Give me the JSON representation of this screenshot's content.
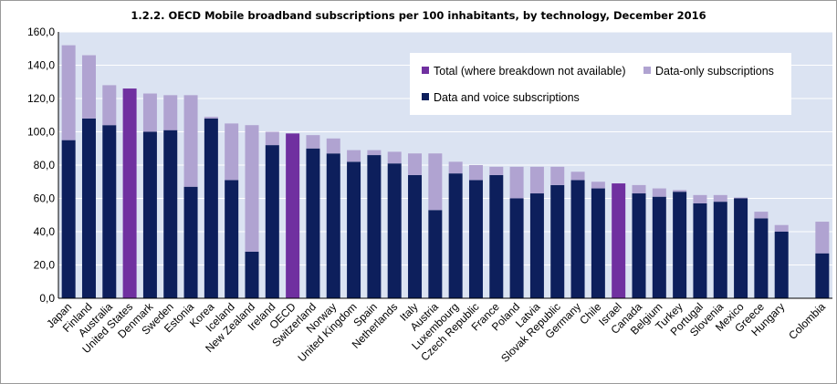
{
  "chart_data": {
    "type": "bar",
    "stacked": true,
    "title": "1.2.2. OECD Mobile broadband subscriptions per 100 inhabitants, by technology, December 2016",
    "xlabel": "",
    "ylabel": "",
    "ylim": [
      0,
      160
    ],
    "yticks": [
      "0,0",
      "20,0",
      "40,0",
      "60,0",
      "80,0",
      "100,0",
      "120,0",
      "140,0",
      "160,0"
    ],
    "grid": true,
    "legend_position": "top-right",
    "categories": [
      "Japan",
      "Finland",
      "Australia",
      "United States",
      "Denmark",
      "Sweden",
      "Estonia",
      "Korea",
      "Iceland",
      "New Zealand",
      "Ireland",
      "OECD",
      "Switzerland",
      "Norway",
      "United Kingdom",
      "Spain",
      "Netherlands",
      "Italy",
      "Austria",
      "Luxembourg",
      "Czech Republic",
      "France",
      "Poland",
      "Latvia",
      "Slovak Republic",
      "Germany",
      "Chile",
      "Israel",
      "Canada",
      "Belgium",
      "Turkey",
      "Portugal",
      "Slovenia",
      "Mexico",
      "Greece",
      "Hungary",
      "",
      "Colombia"
    ],
    "series": [
      {
        "name": "Data and voice subscriptions",
        "color": "#0d1f5c",
        "values": [
          95,
          108,
          104,
          null,
          100,
          101,
          67,
          108,
          71,
          28,
          92,
          null,
          90,
          87,
          82,
          86,
          81,
          74,
          53,
          75,
          71,
          74,
          60,
          63,
          68,
          71,
          66,
          null,
          63,
          61,
          64,
          57,
          58,
          60,
          48,
          40,
          null,
          27
        ]
      },
      {
        "name": "Data-only subscriptions",
        "color": "#b0a3d1",
        "values": [
          57,
          38,
          24,
          null,
          23,
          21,
          55,
          1,
          34,
          76,
          8,
          null,
          8,
          9,
          7,
          3,
          7,
          13,
          34,
          7,
          9,
          5,
          19,
          16,
          11,
          5,
          4,
          null,
          5,
          5,
          1,
          5,
          4,
          0.5,
          4,
          4,
          null,
          19
        ]
      },
      {
        "name": "Total (where breakdown not available)",
        "color": "#7030a0",
        "values": [
          null,
          null,
          null,
          126,
          null,
          null,
          null,
          null,
          null,
          null,
          null,
          99,
          null,
          null,
          null,
          null,
          null,
          null,
          null,
          null,
          null,
          null,
          null,
          null,
          null,
          null,
          null,
          69,
          null,
          null,
          null,
          null,
          null,
          null,
          null,
          null,
          null,
          null
        ]
      }
    ]
  },
  "legend": {
    "total_label": "Total (where breakdown not available)",
    "data_only_label": "Data-only subscriptions",
    "data_voice_label": "Data and voice subscriptions"
  },
  "colors": {
    "plot_background": "#dbe3f2",
    "grid": "#ffffff",
    "data_voice": "#0d1f5c",
    "data_only": "#b0a3d1",
    "total": "#7030a0"
  }
}
